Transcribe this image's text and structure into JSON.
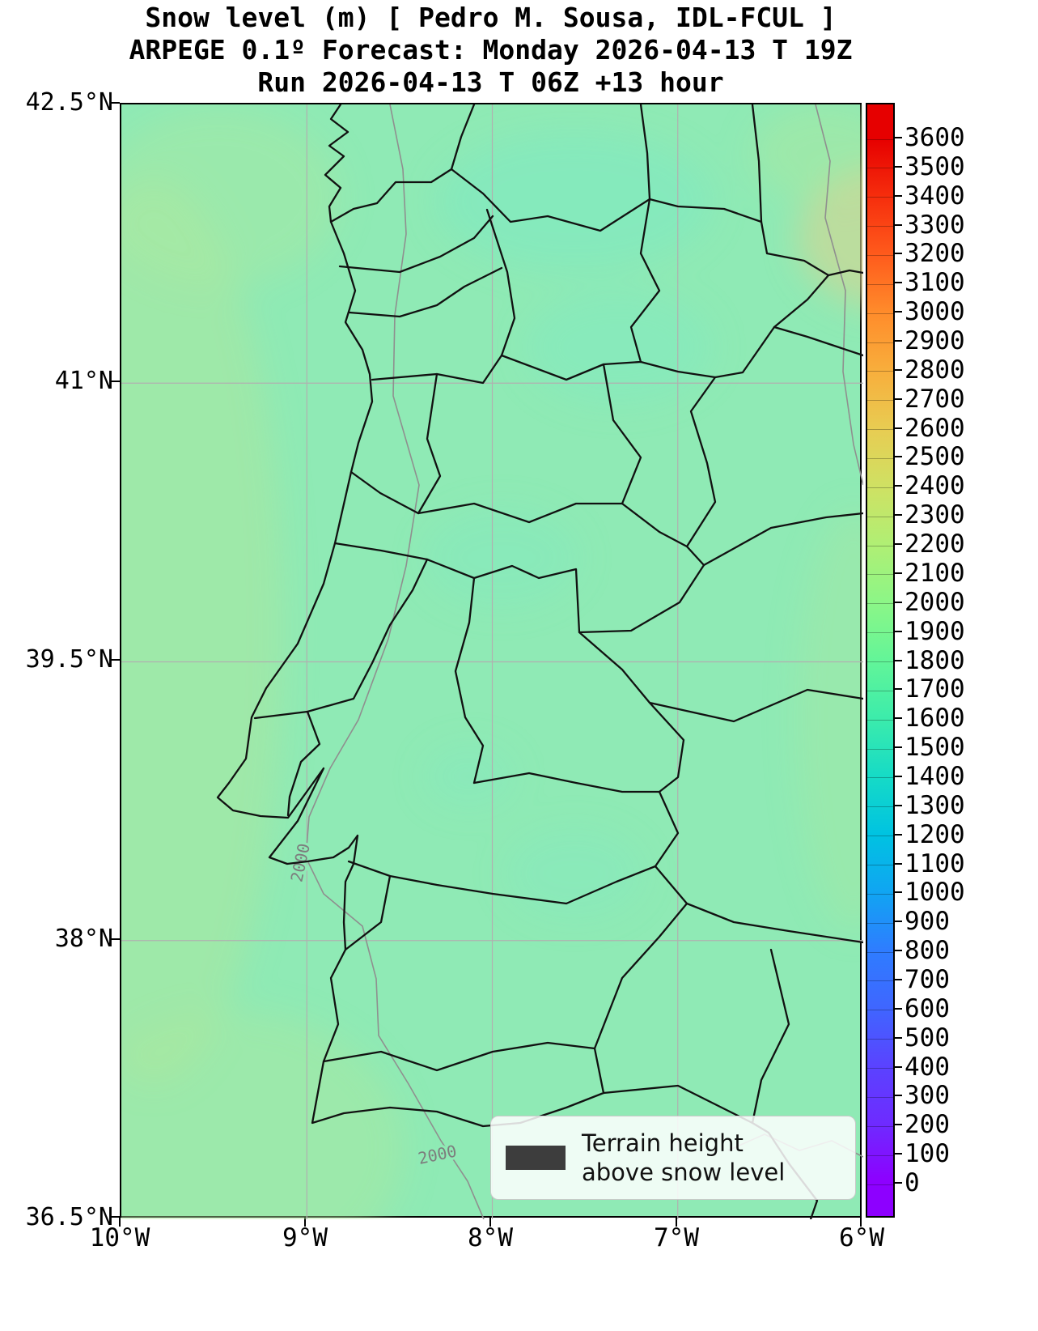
{
  "title": {
    "line1": "Snow level (m) [ Pedro M. Sousa, IDL-FCUL ]",
    "line2": "ARPEGE 0.1º Forecast: Monday 2026-04-13 T 19Z",
    "line3": "Run 2026-04-13 T 06Z +13 hour"
  },
  "axes": {
    "x_ticks": [
      "10°W",
      "9°W",
      "8°W",
      "7°W",
      "6°W"
    ],
    "y_ticks": [
      "42.5°N",
      "41°N",
      "39.5°N",
      "38°N",
      "36.5°N"
    ]
  },
  "map": {
    "contour_labels": [
      "2000",
      "2000"
    ]
  },
  "legend": {
    "line1": "Terrain height",
    "line2": "above snow level",
    "swatch_color": "#3d3d3d"
  },
  "colorbar": {
    "min": 0,
    "max": 3600,
    "step": 100,
    "ticks": [
      3600,
      3500,
      3400,
      3300,
      3200,
      3100,
      3000,
      2900,
      2800,
      2700,
      2600,
      2500,
      2400,
      2300,
      2200,
      2100,
      2000,
      1900,
      1800,
      1700,
      1600,
      1500,
      1400,
      1300,
      1200,
      1100,
      1000,
      900,
      800,
      700,
      600,
      500,
      400,
      300,
      200,
      100,
      0
    ],
    "gradient_stops": [
      {
        "v": 0,
        "c": "#8d00ff"
      },
      {
        "v": 200,
        "c": "#6e2bff"
      },
      {
        "v": 400,
        "c": "#5a43ff"
      },
      {
        "v": 600,
        "c": "#3f66ff"
      },
      {
        "v": 800,
        "c": "#2e7dff"
      },
      {
        "v": 1000,
        "c": "#10a5f2"
      },
      {
        "v": 1200,
        "c": "#00c3e1"
      },
      {
        "v": 1400,
        "c": "#16dbc6"
      },
      {
        "v": 1600,
        "c": "#3cecab"
      },
      {
        "v": 1800,
        "c": "#63f598"
      },
      {
        "v": 2000,
        "c": "#8cf687"
      },
      {
        "v": 2200,
        "c": "#b0ef74"
      },
      {
        "v": 2400,
        "c": "#cfe163"
      },
      {
        "v": 2600,
        "c": "#e8cc52"
      },
      {
        "v": 2800,
        "c": "#f8ae3c"
      },
      {
        "v": 3000,
        "c": "#ff8c2b"
      },
      {
        "v": 3200,
        "c": "#ff5b1c"
      },
      {
        "v": 3400,
        "c": "#f62e0d"
      },
      {
        "v": 3600,
        "c": "#e60000"
      }
    ]
  },
  "colors": {
    "base_field": "#8feab5",
    "patch_teal": "#7de9c4",
    "patch_yellow_green": "#aee79d",
    "patch_tan": "#d8d48f",
    "grid": "#b0b0b0",
    "contour": "#8f8f8f",
    "boundary": "#111111"
  },
  "chart_data": {
    "type": "heatmap",
    "title": "Snow level (m)",
    "model": "ARPEGE 0.1º",
    "valid_time": "Monday 2026-04-13 T 19Z",
    "run": "2026-04-13 T 06Z",
    "lead": "+13 hour",
    "region": "Portugal and western Iberia",
    "x_ticks": [
      "10°W",
      "9°W",
      "8°W",
      "7°W",
      "6°W"
    ],
    "y_ticks": [
      "42.5°N",
      "41°N",
      "39.5°N",
      "38°N",
      "36.5°N"
    ],
    "x_range_deg": [
      -10,
      -6
    ],
    "y_range_deg": [
      36.5,
      42.5
    ],
    "grid": true,
    "colorbar": {
      "label": "Snow level (m)",
      "min": 0,
      "max": 3600,
      "tick_step": 100
    },
    "contours_labeled_m": [
      2000
    ],
    "field_estimate_m": {
      "typical": 1900,
      "range": [
        1800,
        2200
      ],
      "notes": "Snow level near 1850-1950 m over most of the domain; slightly higher (2000-2200 m) along the western Atlantic edge and far northeast corner; small pockets near 1800 m over northern and central interior Portugal"
    },
    "legend_entries": [
      "Terrain height above snow level"
    ]
  }
}
